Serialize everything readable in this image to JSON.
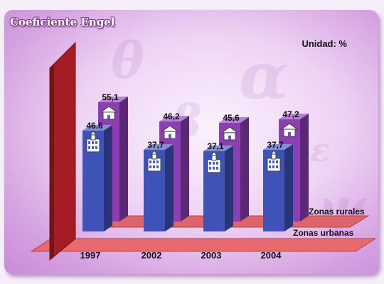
{
  "chart_data": {
    "type": "bar",
    "title": "Coeficiente Engel",
    "unit": "Unidad: %",
    "categories": [
      "1997",
      "2002",
      "2003",
      "2004"
    ],
    "series": [
      {
        "name": "Zonas urbanas",
        "values": [
          46.6,
          37.7,
          37.1,
          37.7
        ],
        "labels": [
          "46.6",
          "37,7",
          "37,1",
          "37,7"
        ],
        "color": "#3f52b8",
        "icon": "building-icon"
      },
      {
        "name": "Zonas rurales",
        "values": [
          55.1,
          46.2,
          45.6,
          47.2
        ],
        "labels": [
          "55,1",
          "46,2",
          "45,6",
          "47,2"
        ],
        "color": "#8c3fb3",
        "icon": "house-icon"
      }
    ],
    "three_d": true,
    "legend": "floor-labels-right",
    "colors": {
      "floor": "#e86a6e",
      "wall": "#a61c24"
    }
  },
  "decoration": [
    "θ",
    "α",
    "ε",
    "β",
    "ψ"
  ]
}
